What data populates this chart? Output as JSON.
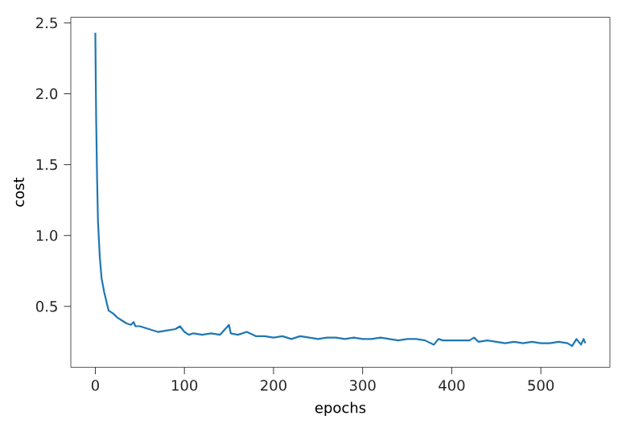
{
  "chart_data": {
    "type": "line",
    "xlabel": "epochs",
    "ylabel": "cost",
    "xlim": [
      -27.5,
      577.5
    ],
    "ylim": [
      0.07,
      2.54
    ],
    "xticks": [
      0,
      100,
      200,
      300,
      400,
      500
    ],
    "yticks": [
      {
        "value": 0.5,
        "label": "0.5"
      },
      {
        "value": 1.0,
        "label": "1.0"
      },
      {
        "value": 1.5,
        "label": "1.5"
      },
      {
        "value": 2.0,
        "label": "2.0"
      },
      {
        "value": 2.5,
        "label": "2.5"
      }
    ],
    "grid": false,
    "series": [
      {
        "color": "#1f77b4",
        "x": [
          0,
          1,
          2,
          3,
          5,
          7,
          10,
          13,
          15,
          20,
          25,
          30,
          35,
          40,
          43,
          45,
          50,
          55,
          60,
          70,
          80,
          90,
          95,
          100,
          105,
          110,
          120,
          130,
          140,
          150,
          152,
          160,
          170,
          180,
          190,
          200,
          210,
          220,
          230,
          240,
          250,
          260,
          270,
          280,
          290,
          300,
          310,
          320,
          330,
          340,
          350,
          360,
          370,
          380,
          385,
          390,
          400,
          410,
          420,
          425,
          430,
          440,
          450,
          460,
          470,
          480,
          490,
          500,
          510,
          520,
          530,
          535,
          540,
          545,
          548,
          550
        ],
        "values": [
          2.43,
          1.8,
          1.4,
          1.1,
          0.85,
          0.7,
          0.6,
          0.52,
          0.47,
          0.45,
          0.42,
          0.4,
          0.38,
          0.37,
          0.39,
          0.36,
          0.36,
          0.35,
          0.34,
          0.32,
          0.33,
          0.34,
          0.36,
          0.32,
          0.3,
          0.31,
          0.3,
          0.31,
          0.3,
          0.37,
          0.31,
          0.3,
          0.32,
          0.29,
          0.29,
          0.28,
          0.29,
          0.27,
          0.29,
          0.28,
          0.27,
          0.28,
          0.28,
          0.27,
          0.28,
          0.27,
          0.27,
          0.28,
          0.27,
          0.26,
          0.27,
          0.27,
          0.26,
          0.23,
          0.27,
          0.26,
          0.26,
          0.26,
          0.26,
          0.28,
          0.25,
          0.26,
          0.25,
          0.24,
          0.25,
          0.24,
          0.25,
          0.24,
          0.24,
          0.25,
          0.24,
          0.22,
          0.27,
          0.23,
          0.27,
          0.24
        ]
      }
    ]
  }
}
